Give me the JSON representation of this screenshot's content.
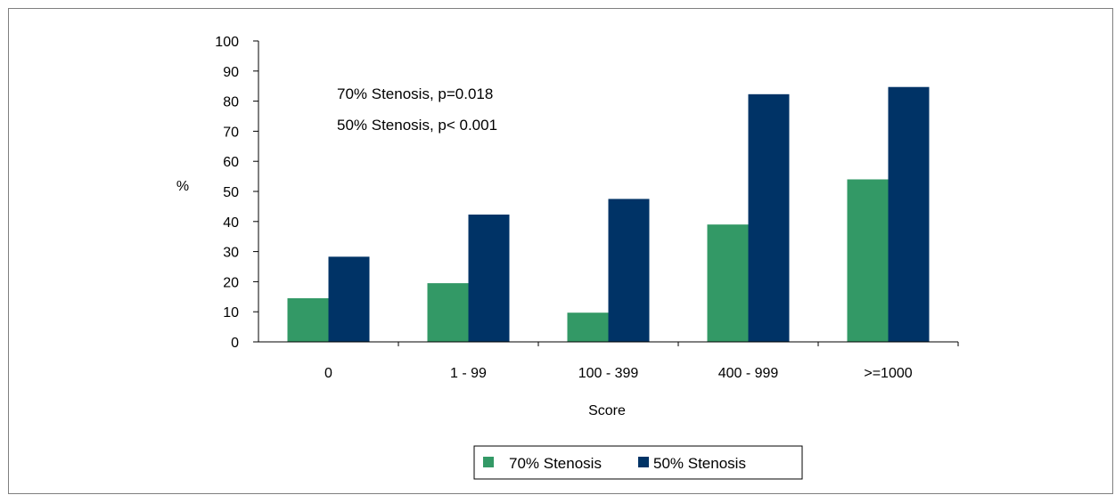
{
  "chart_data": {
    "type": "bar",
    "title": "",
    "xlabel": "Score",
    "ylabel": "%",
    "categories": [
      "0",
      "1 - 99",
      "100 - 399",
      "400 - 999",
      ">=1000"
    ],
    "series": [
      {
        "name": "70% Stenosis",
        "values": [
          14.5,
          19.5,
          9.7,
          39.0,
          54.0
        ],
        "color": "#339966"
      },
      {
        "name": "50% Stenosis",
        "values": [
          28.3,
          42.3,
          47.5,
          82.3,
          84.7
        ],
        "color": "#003366"
      }
    ],
    "ylim": [
      0,
      100
    ],
    "yticks": [
      "0",
      "10",
      "20",
      "30",
      "40",
      "50",
      "60",
      "70",
      "80",
      "90",
      "100"
    ],
    "grid": false,
    "legend": "bottom",
    "annotations": [
      "70% Stenosis, p=0.018",
      "50% Stenosis, p< 0.001"
    ]
  }
}
